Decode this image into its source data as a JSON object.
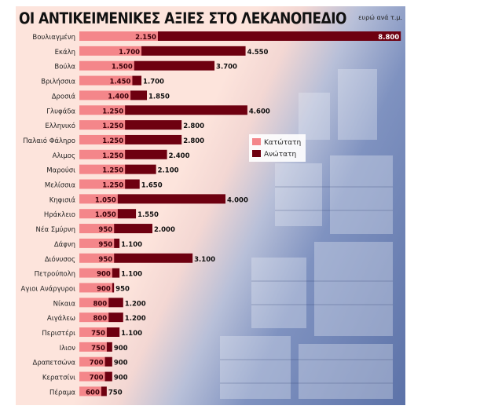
{
  "chart_data": {
    "type": "bar",
    "title": "ΟΙ ΑΝΤΙΚΕΙΜΕΝΙΚΕΣ ΑΞΙΕΣ ΣΤΟ ΛΕΚΑΝΟΠΕΔΙΟ",
    "unit_label": "ευρώ ανά τ.μ.",
    "orientation": "horizontal",
    "grid": false,
    "legend_position": "right-middle",
    "categories": [
      "Βουλιαγμένη",
      "Εκάλη",
      "Βούλα",
      "Βριλήσσια",
      "Δροσιά",
      "Γλυφάδα",
      "Ελληνικό",
      "Παλαιό Φάληρο",
      "Αλιμος",
      "Μαρούσι",
      "Μελίσσια",
      "Κηφισιά",
      "Ηράκλειο",
      "Νέα Σμύρνη",
      "Δάφνη",
      "Διόνυσος",
      "Πετρούπολη",
      "Αγιοι Ανάργυροι",
      "Νίκαια",
      "Αιγάλεω",
      "Περιστέρι",
      "Ιλιον",
      "Δραπετσώνα",
      "Κερατσίνι",
      "Πέραμα"
    ],
    "series": [
      {
        "name": "Κατώτατη",
        "color": "#f4868a",
        "values": [
          2150,
          1700,
          1500,
          1450,
          1400,
          1250,
          1250,
          1250,
          1250,
          1250,
          1250,
          1050,
          1050,
          950,
          950,
          950,
          900,
          900,
          800,
          800,
          750,
          750,
          700,
          700,
          600
        ],
        "labels": [
          "2.150",
          "1.700",
          "1.500",
          "1.450",
          "1.400",
          "1.250",
          "1.250",
          "1.250",
          "1.250",
          "1.250",
          "1.250",
          "1.050",
          "1.050",
          "950",
          "950",
          "950",
          "900",
          "900",
          "800",
          "800",
          "750",
          "750",
          "700",
          "700",
          "600"
        ]
      },
      {
        "name": "Ανώτατη",
        "color": "#6e0010",
        "values": [
          8800,
          4550,
          3700,
          1700,
          1850,
          4600,
          2800,
          2800,
          2400,
          2100,
          1650,
          4000,
          1550,
          2000,
          1100,
          3100,
          1100,
          950,
          1200,
          1200,
          1100,
          900,
          900,
          900,
          750
        ],
        "labels": [
          "8.800",
          "4.550",
          "3.700",
          "1.700",
          "1.850",
          "4.600",
          "2.800",
          "2.800",
          "2.400",
          "2.100",
          "1.650",
          "4.000",
          "1.550",
          "2.000",
          "1.100",
          "3.100",
          "1.100",
          "950",
          "1.200",
          "1.200",
          "1.100",
          "900",
          "900",
          "900",
          "750"
        ]
      }
    ]
  }
}
